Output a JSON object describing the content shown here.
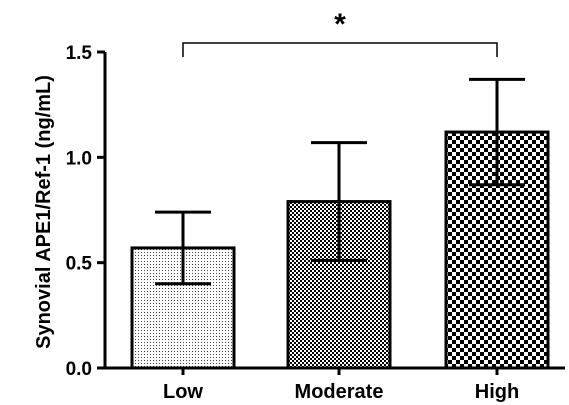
{
  "chart_data": {
    "type": "bar",
    "title": "",
    "xlabel": "",
    "ylabel": "Synovial APE1/Ref-1 (ng/mL)",
    "categories": [
      "Low",
      "Moderate",
      "High"
    ],
    "values": [
      0.57,
      0.79,
      1.12
    ],
    "errors": [
      0.17,
      0.28,
      0.25
    ],
    "ylim": [
      0.0,
      1.5
    ],
    "yticks": [
      "0.0",
      "0.5",
      "1.0",
      "1.5"
    ],
    "grid": false,
    "legend": "none",
    "significance": {
      "from": "Low",
      "to": "High",
      "label": "*"
    },
    "fill_patterns": [
      "fine-dots",
      "medium-checker",
      "coarse-checker"
    ],
    "colors": {
      "bar_fill": "#ffffff",
      "bar_stroke": "#000000",
      "pattern": "#000000"
    }
  }
}
